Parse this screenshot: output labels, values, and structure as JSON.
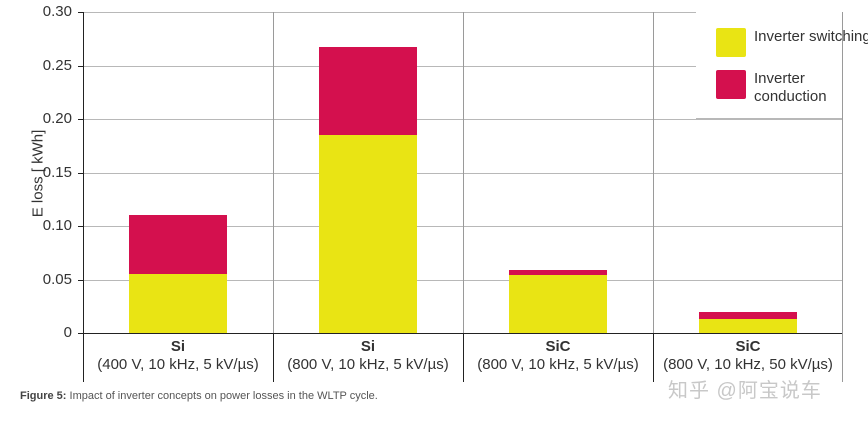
{
  "chart_data": {
    "type": "bar",
    "stacked": true,
    "title": "",
    "xlabel": "",
    "ylabel": "E loss [ kWh]",
    "ylim": [
      0,
      0.3
    ],
    "yticks": [
      "0",
      "0.05",
      "0.10",
      "0.15",
      "0.20",
      "0.25",
      "0.30"
    ],
    "grid": true,
    "legend_position": "top-right",
    "categories": [
      {
        "main": "Si",
        "sub": "(400 V, 10 kHz, 5 kV/µs)"
      },
      {
        "main": "Si",
        "sub": "(800 V, 10 kHz, 5 kV/µs)"
      },
      {
        "main": "SiC",
        "sub": "(800 V, 10 kHz, 5 kV/µs)"
      },
      {
        "main": "SiC",
        "sub": "(800 V, 10 kHz, 50 kV/µs)"
      }
    ],
    "series": [
      {
        "name": "Inverter switching",
        "color": "#e9e414",
        "values": [
          0.055,
          0.185,
          0.054,
          0.013
        ]
      },
      {
        "name": "Inverter conduction",
        "color": "#d4104e",
        "values": [
          0.055,
          0.082,
          0.005,
          0.007
        ]
      }
    ]
  },
  "legend": {
    "switching": "Inverter switching",
    "conduction": "Inverter conduction"
  },
  "caption": {
    "label": "Figure 5:",
    "text": " Impact of inverter concepts on power losses in the WLTP cycle."
  },
  "watermark": "知乎 @阿宝说车"
}
